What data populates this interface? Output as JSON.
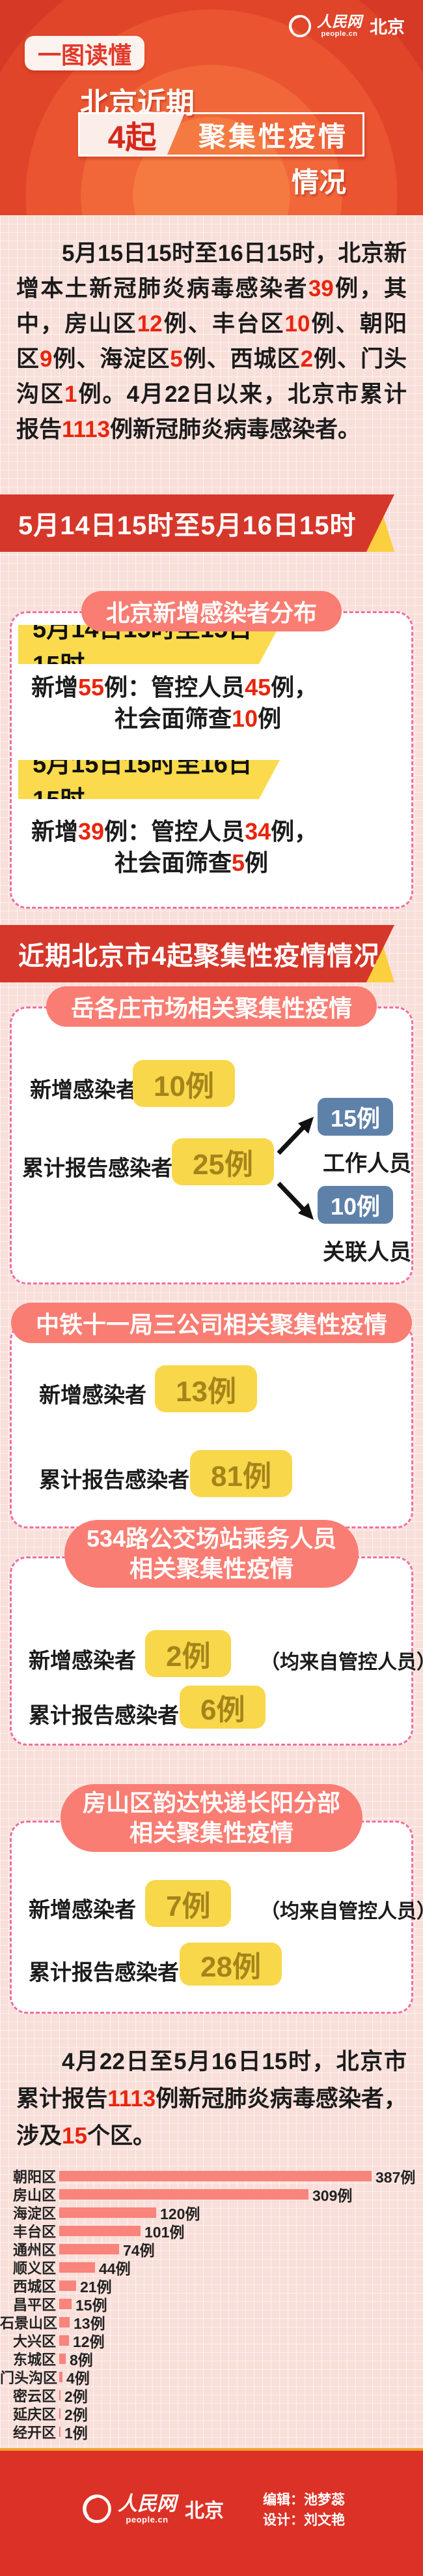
{
  "header": {
    "badge": "一图读懂",
    "brand": {
      "site": "人民网",
      "domain": "people.cn",
      "region": "北京"
    },
    "title_line1": "北京近期",
    "title_highlight": "4起",
    "title_boxed": "聚集性疫情",
    "title_line3": "情况"
  },
  "intro_segments": [
    {
      "t": "5月15日15时至16日15时，北京新增本土新冠肺炎病毒感染者"
    },
    {
      "t": "39",
      "c": "red"
    },
    {
      "t": "例，其中，房山区"
    },
    {
      "t": "12",
      "c": "red"
    },
    {
      "t": "例、丰台区"
    },
    {
      "t": "10",
      "c": "red"
    },
    {
      "t": "例、朝阳区"
    },
    {
      "t": "9",
      "c": "red"
    },
    {
      "t": "例、海淀区"
    },
    {
      "t": "5",
      "c": "red"
    },
    {
      "t": "例、西城区"
    },
    {
      "t": "2",
      "c": "red"
    },
    {
      "t": "例、门头沟区"
    },
    {
      "t": "1",
      "c": "red"
    },
    {
      "t": "例。4月22日以来，北京市累计报告"
    },
    {
      "t": "1113",
      "c": "red"
    },
    {
      "t": "例新冠肺炎病毒感染者。"
    }
  ],
  "ribbon1": "5月14日15时至5月16日15时",
  "distribution": {
    "pill": "北京新增感染者分布",
    "period1": {
      "banner": "5月14日15时至15日15时",
      "line1_segments": [
        {
          "t": "新增"
        },
        {
          "t": "55",
          "c": "red"
        },
        {
          "t": "例：管控人员"
        },
        {
          "t": "45",
          "c": "red"
        },
        {
          "t": "例，"
        }
      ],
      "line2_segments": [
        {
          "t": "社会面筛查"
        },
        {
          "t": "10",
          "c": "red"
        },
        {
          "t": "例"
        }
      ]
    },
    "period2": {
      "banner": "5月15日15时至16日15时",
      "line1_segments": [
        {
          "t": "新增"
        },
        {
          "t": "39",
          "c": "red"
        },
        {
          "t": "例：管控人员"
        },
        {
          "t": "34",
          "c": "red"
        },
        {
          "t": "例，"
        }
      ],
      "line2_segments": [
        {
          "t": "社会面筛查"
        },
        {
          "t": "5",
          "c": "red"
        },
        {
          "t": "例"
        }
      ]
    }
  },
  "ribbon2": "近期北京市4起聚集性疫情情况",
  "clusters": [
    {
      "title": "岳各庄市场相关聚集性疫情",
      "new_label": "新增感染者",
      "new_value": "10例",
      "total_label": "累计报告感染者",
      "total_value": "25例",
      "split": [
        {
          "value": "15例",
          "label": "工作人员"
        },
        {
          "value": "10例",
          "label": "关联人员"
        }
      ]
    },
    {
      "title": "中铁十一局三公司相关聚集性疫情",
      "new_label": "新增感染者",
      "new_value": "13例",
      "total_label": "累计报告感染者",
      "total_value": "81例"
    },
    {
      "title_line1": "534路公交场站乘务人员",
      "title_line2": "相关聚集性疫情",
      "new_label": "新增感染者",
      "new_value": "2例",
      "new_note": "（均来自管控人员）",
      "total_label": "累计报告感染者",
      "total_value": "6例"
    },
    {
      "title_line1": "房山区韵达快递长阳分部",
      "title_line2": "相关聚集性疫情",
      "new_label": "新增感染者",
      "new_value": "7例",
      "new_note": "（均来自管控人员）",
      "total_label": "累计报告感染者",
      "total_value": "28例"
    }
  ],
  "summary_segments": [
    {
      "t": "4月22日至5月16日15时，北京市累计报告"
    },
    {
      "t": "1113",
      "c": "red"
    },
    {
      "t": "例新冠肺炎病毒感染者，涉及"
    },
    {
      "t": "15",
      "c": "red"
    },
    {
      "t": "个区。"
    }
  ],
  "chart_data": {
    "type": "bar",
    "orientation": "horizontal",
    "categories": [
      "朝阳区",
      "房山区",
      "海淀区",
      "丰台区",
      "通州区",
      "顺义区",
      "西城区",
      "昌平区",
      "石景山区",
      "大兴区",
      "东城区",
      "门头沟区",
      "密云区",
      "延庆区",
      "经开区"
    ],
    "values": [
      387,
      309,
      120,
      101,
      74,
      44,
      21,
      15,
      13,
      12,
      8,
      4,
      2,
      2,
      1
    ],
    "unit": "例",
    "value_label_format": "{value}例",
    "xlim": [
      0,
      400
    ],
    "bar_color": "#F8847C",
    "grid": false,
    "legend": "none"
  },
  "footer": {
    "brand": {
      "site": "人民网",
      "domain": "people.cn",
      "region": "北京"
    },
    "credits": [
      "编辑：池梦蕊",
      "设计：刘文艳"
    ]
  }
}
